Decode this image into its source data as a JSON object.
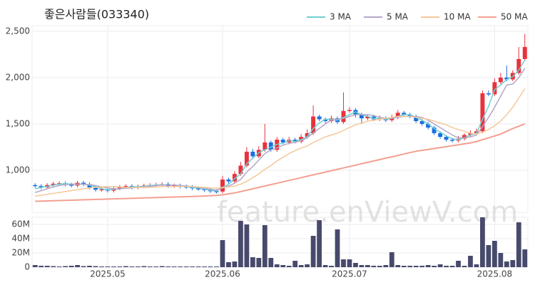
{
  "chart_data": [
    {
      "type": "candlestick",
      "title": "좋은사람들(033340)",
      "watermark": "feature.enViewV.com",
      "up_color": "#e8323c",
      "down_color": "#1a6ee0",
      "grid": true,
      "legend": "top-right",
      "open": [
        840,
        830,
        815,
        840,
        855,
        860,
        845,
        835,
        865,
        850,
        815,
        790,
        795,
        780,
        805,
        820,
        830,
        815,
        825,
        835,
        840,
        845,
        850,
        830,
        835,
        825,
        820,
        805,
        800,
        785,
        775,
        770,
        900,
        880,
        960,
        1050,
        1200,
        1150,
        1220,
        1300,
        1220,
        1330,
        1300,
        1330,
        1310,
        1360,
        1400,
        1580,
        1550,
        1530,
        1560,
        1520,
        1640,
        1650,
        1600,
        1560,
        1580,
        1550,
        1560,
        1540,
        1570,
        1620,
        1600,
        1580,
        1530,
        1500,
        1460,
        1400,
        1360,
        1330,
        1320,
        1340,
        1380,
        1400,
        1420,
        1830,
        1820,
        1950,
        2000,
        1980,
        2050,
        2200
      ],
      "high": [
        860,
        850,
        860,
        875,
        880,
        880,
        865,
        885,
        885,
        870,
        835,
        815,
        815,
        825,
        840,
        850,
        850,
        845,
        855,
        860,
        865,
        870,
        870,
        855,
        855,
        845,
        840,
        825,
        820,
        805,
        795,
        940,
        920,
        990,
        1090,
        1250,
        1230,
        1260,
        1500,
        1320,
        1360,
        1350,
        1360,
        1350,
        1390,
        1440,
        1700,
        1600,
        1570,
        1590,
        1580,
        1840,
        1680,
        1670,
        1620,
        1600,
        1600,
        1590,
        1580,
        1600,
        1650,
        1640,
        1620,
        1600,
        1550,
        1520,
        1480,
        1420,
        1380,
        1350,
        1370,
        1400,
        1430,
        1450,
        1860,
        1860,
        1990,
        2050,
        2130,
        2080,
        2330,
        2470
      ],
      "low": [
        810,
        795,
        795,
        820,
        835,
        825,
        815,
        815,
        830,
        795,
        770,
        770,
        760,
        760,
        785,
        800,
        795,
        795,
        805,
        815,
        820,
        825,
        810,
        810,
        805,
        800,
        785,
        780,
        765,
        755,
        750,
        750,
        850,
        860,
        940,
        1030,
        1120,
        1130,
        1200,
        1200,
        1200,
        1280,
        1280,
        1290,
        1290,
        1340,
        1380,
        1530,
        1510,
        1510,
        1500,
        1500,
        1620,
        1570,
        1500,
        1540,
        1530,
        1530,
        1520,
        1520,
        1550,
        1580,
        1560,
        1510,
        1480,
        1440,
        1380,
        1340,
        1310,
        1300,
        1300,
        1320,
        1360,
        1380,
        1400,
        1800,
        1800,
        1930,
        1960,
        1960,
        2030,
        2180
      ],
      "close": [
        830,
        815,
        840,
        855,
        860,
        845,
        835,
        865,
        850,
        815,
        790,
        795,
        780,
        805,
        820,
        830,
        815,
        825,
        835,
        840,
        845,
        850,
        830,
        835,
        825,
        820,
        805,
        800,
        785,
        775,
        770,
        900,
        880,
        960,
        1050,
        1200,
        1150,
        1220,
        1300,
        1220,
        1330,
        1300,
        1330,
        1310,
        1360,
        1400,
        1580,
        1550,
        1530,
        1560,
        1520,
        1640,
        1650,
        1600,
        1560,
        1580,
        1550,
        1560,
        1540,
        1570,
        1620,
        1600,
        1580,
        1530,
        1500,
        1460,
        1400,
        1360,
        1330,
        1320,
        1340,
        1380,
        1400,
        1420,
        1830,
        1820,
        1950,
        2000,
        1980,
        2050,
        2200,
        2330
      ],
      "series": [
        {
          "name": "3 MA",
          "color": "#6fcfd2",
          "values": [
            800,
            815,
            825,
            840,
            850,
            855,
            850,
            850,
            850,
            840,
            820,
            800,
            790,
            795,
            800,
            815,
            820,
            825,
            825,
            835,
            840,
            845,
            840,
            840,
            830,
            825,
            815,
            810,
            795,
            785,
            775,
            815,
            850,
            910,
            960,
            1070,
            1130,
            1190,
            1220,
            1250,
            1280,
            1290,
            1320,
            1310,
            1330,
            1360,
            1450,
            1510,
            1550,
            1550,
            1540,
            1570,
            1600,
            1630,
            1600,
            1580,
            1560,
            1560,
            1550,
            1560,
            1580,
            1600,
            1600,
            1570,
            1540,
            1500,
            1450,
            1410,
            1370,
            1340,
            1330,
            1350,
            1380,
            1400,
            1550,
            1690,
            1870,
            1920,
            1980,
            2010,
            2080,
            2190
          ]
        },
        {
          "name": "5 MA",
          "color": "#b4a7c9",
          "values": [
            760,
            780,
            800,
            820,
            835,
            845,
            850,
            850,
            850,
            845,
            835,
            820,
            810,
            800,
            800,
            805,
            810,
            815,
            820,
            825,
            835,
            840,
            840,
            840,
            835,
            830,
            825,
            815,
            805,
            795,
            785,
            810,
            830,
            860,
            900,
            980,
            1040,
            1110,
            1180,
            1220,
            1240,
            1270,
            1290,
            1300,
            1320,
            1350,
            1400,
            1450,
            1500,
            1540,
            1550,
            1560,
            1580,
            1600,
            1600,
            1600,
            1590,
            1570,
            1560,
            1560,
            1570,
            1580,
            1580,
            1580,
            1570,
            1540,
            1500,
            1460,
            1420,
            1380,
            1350,
            1350,
            1360,
            1380,
            1470,
            1570,
            1680,
            1800,
            1920,
            1930,
            2000,
            2100
          ]
        },
        {
          "name": "10 MA",
          "color": "#f5c89a",
          "values": [
            720,
            730,
            740,
            750,
            760,
            770,
            780,
            790,
            800,
            810,
            815,
            820,
            825,
            825,
            820,
            815,
            815,
            815,
            815,
            815,
            820,
            825,
            825,
            825,
            825,
            825,
            825,
            820,
            815,
            810,
            805,
            815,
            820,
            830,
            850,
            880,
            920,
            960,
            1010,
            1050,
            1100,
            1140,
            1180,
            1210,
            1240,
            1260,
            1300,
            1330,
            1360,
            1380,
            1400,
            1430,
            1460,
            1490,
            1510,
            1530,
            1540,
            1550,
            1560,
            1570,
            1580,
            1580,
            1580,
            1570,
            1560,
            1550,
            1530,
            1510,
            1490,
            1460,
            1440,
            1420,
            1400,
            1390,
            1410,
            1440,
            1480,
            1530,
            1600,
            1680,
            1780,
            1880
          ]
        },
        {
          "name": "50 MA",
          "color": "#f4a090",
          "values": [
            665,
            667,
            669,
            671,
            673,
            675,
            677,
            679,
            681,
            683,
            685,
            687,
            689,
            691,
            693,
            695,
            697,
            699,
            701,
            703,
            705,
            707,
            709,
            711,
            713,
            715,
            717,
            719,
            722,
            725,
            728,
            735,
            745,
            755,
            770,
            785,
            800,
            815,
            830,
            845,
            860,
            875,
            890,
            905,
            920,
            935,
            950,
            965,
            980,
            995,
            1010,
            1025,
            1040,
            1055,
            1070,
            1085,
            1100,
            1115,
            1130,
            1145,
            1160,
            1175,
            1190,
            1205,
            1215,
            1225,
            1235,
            1245,
            1255,
            1265,
            1275,
            1285,
            1295,
            1310,
            1330,
            1350,
            1370,
            1390,
            1420,
            1450,
            1475,
            1500
          ]
        }
      ],
      "ylim": [
        546,
        2560
      ],
      "yticks": [
        {
          "value": 1000,
          "label": "1,000"
        },
        {
          "value": 1500,
          "label": "1,500"
        },
        {
          "value": 2000,
          "label": "2,000"
        },
        {
          "value": 2500,
          "label": "2,500"
        }
      ]
    },
    {
      "type": "bar",
      "color": "#474a6b",
      "grid": true,
      "categories": [
        null,
        null,
        null,
        null,
        null,
        null,
        null,
        null,
        null,
        null,
        null,
        null,
        "2025.05",
        null,
        null,
        null,
        null,
        null,
        null,
        null,
        null,
        null,
        null,
        null,
        null,
        null,
        null,
        null,
        null,
        null,
        null,
        "2025.06",
        null,
        null,
        null,
        null,
        null,
        null,
        null,
        null,
        null,
        null,
        null,
        null,
        null,
        null,
        null,
        null,
        null,
        null,
        null,
        null,
        "2025.07",
        null,
        null,
        null,
        null,
        null,
        null,
        null,
        null,
        null,
        null,
        null,
        null,
        null,
        null,
        null,
        null,
        null,
        null,
        null,
        null,
        null,
        null,
        null,
        "2025.08",
        null,
        null,
        null,
        null,
        null
      ],
      "values": [
        3000000,
        2000000,
        2000000,
        1500000,
        1000000,
        1500000,
        2000000,
        3000000,
        1500000,
        2000000,
        1500000,
        1000000,
        1000000,
        1000000,
        1000000,
        1500000,
        1000000,
        1000000,
        1500000,
        1000000,
        1000000,
        1500000,
        1000000,
        1000000,
        1000000,
        1000000,
        1000000,
        1000000,
        1000000,
        1000000,
        1000000,
        38000000,
        7000000,
        8000000,
        65000000,
        60000000,
        14000000,
        13000000,
        59000000,
        13000000,
        4000000,
        3000000,
        2000000,
        9000000,
        3000000,
        4000000,
        44000000,
        66000000,
        3000000,
        2000000,
        53000000,
        11000000,
        11000000,
        6000000,
        3000000,
        3000000,
        2000000,
        2000000,
        3000000,
        21000000,
        3000000,
        2000000,
        2000000,
        2000000,
        2000000,
        3000000,
        2000000,
        4000000,
        2000000,
        2000000,
        9000000,
        2000000,
        16000000,
        4000000,
        70000000,
        31000000,
        37000000,
        20000000,
        8000000,
        10000000,
        63000000,
        25000000
      ],
      "ylim": [
        0,
        70000000
      ],
      "yticks": [
        0,
        {
          "value": 20000000,
          "label": "20M"
        },
        {
          "value": 40000000,
          "label": "40M"
        },
        {
          "value": 60000000,
          "label": "60M"
        }
      ]
    }
  ]
}
